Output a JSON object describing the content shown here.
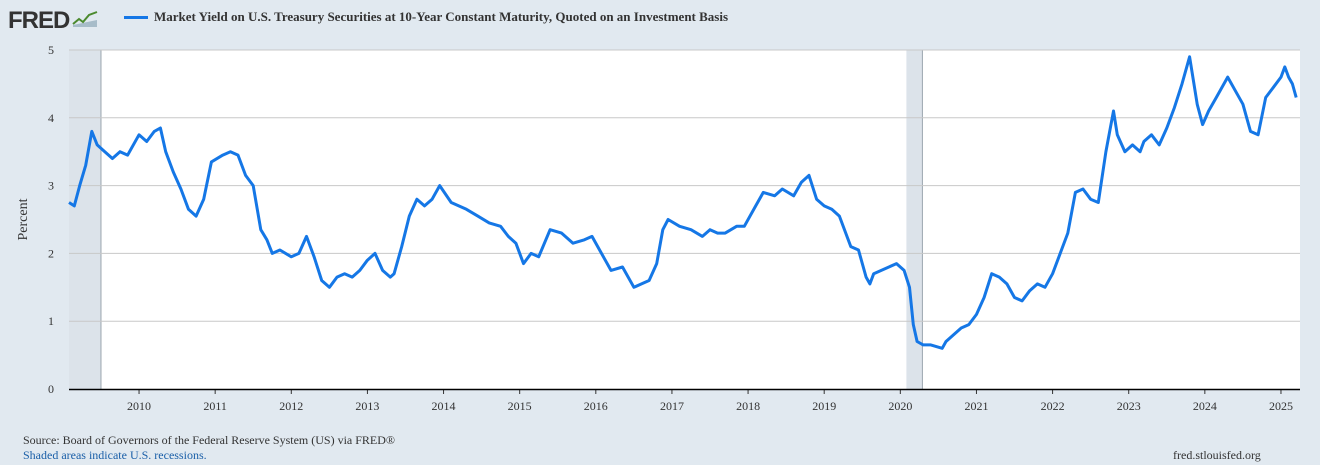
{
  "header": {
    "logo_text": "FRED",
    "logo_icon": "line-chart-icon",
    "series_title": "Market Yield on U.S. Treasury Securities at 10-Year Constant Maturity, Quoted on an Investment Basis"
  },
  "colors": {
    "series": "#1577e6",
    "background": "#e1e9f0",
    "plot": "#ffffff",
    "recession": "#dce3ea",
    "grid": "#c8c8c8"
  },
  "footer": {
    "source": "Source: Board of Governors of the Federal Reserve System (US) via FRED®",
    "shading_note": "Shaded areas indicate U.S. recessions.",
    "site": "fred.stlouisfed.org"
  },
  "chart_data": {
    "type": "line",
    "ylabel": "Percent",
    "xlabel": "",
    "ylim": [
      0,
      5
    ],
    "xlim": [
      2009.08,
      2025.25
    ],
    "y_ticks": [
      "0",
      "1",
      "2",
      "3",
      "4",
      "5"
    ],
    "x_ticks": [
      "2010",
      "2011",
      "2012",
      "2013",
      "2014",
      "2015",
      "2016",
      "2017",
      "2018",
      "2019",
      "2020",
      "2021",
      "2022",
      "2023",
      "2024",
      "2025"
    ],
    "grid": true,
    "legend": "top-left",
    "recessions": [
      [
        2009.08,
        2009.5
      ],
      [
        2020.08,
        2020.29
      ]
    ],
    "series": [
      {
        "name": "Market Yield on U.S. Treasury Securities at 10-Year Constant Maturity, Quoted on an Investment Basis",
        "x": [
          2009.08,
          2009.15,
          2009.22,
          2009.3,
          2009.38,
          2009.45,
          2009.55,
          2009.65,
          2009.75,
          2009.85,
          2010.0,
          2010.1,
          2010.2,
          2010.28,
          2010.35,
          2010.45,
          2010.55,
          2010.65,
          2010.75,
          2010.85,
          2010.95,
          2011.1,
          2011.2,
          2011.3,
          2011.4,
          2011.5,
          2011.6,
          2011.68,
          2011.75,
          2011.85,
          2012.0,
          2012.1,
          2012.2,
          2012.3,
          2012.4,
          2012.5,
          2012.6,
          2012.7,
          2012.8,
          2012.9,
          2013.0,
          2013.1,
          2013.2,
          2013.3,
          2013.35,
          2013.45,
          2013.55,
          2013.65,
          2013.75,
          2013.85,
          2013.95,
          2014.1,
          2014.2,
          2014.3,
          2014.45,
          2014.6,
          2014.75,
          2014.85,
          2014.95,
          2015.05,
          2015.15,
          2015.25,
          2015.4,
          2015.55,
          2015.7,
          2015.85,
          2015.95,
          2016.1,
          2016.2,
          2016.35,
          2016.5,
          2016.6,
          2016.7,
          2016.8,
          2016.88,
          2016.95,
          2017.1,
          2017.25,
          2017.4,
          2017.5,
          2017.6,
          2017.7,
          2017.85,
          2017.95,
          2018.1,
          2018.2,
          2018.35,
          2018.45,
          2018.6,
          2018.7,
          2018.8,
          2018.9,
          2019.0,
          2019.1,
          2019.2,
          2019.35,
          2019.45,
          2019.55,
          2019.6,
          2019.65,
          2019.75,
          2019.85,
          2019.95,
          2020.05,
          2020.12,
          2020.17,
          2020.22,
          2020.3,
          2020.4,
          2020.55,
          2020.6,
          2020.7,
          2020.8,
          2020.9,
          2021.0,
          2021.1,
          2021.2,
          2021.3,
          2021.4,
          2021.5,
          2021.6,
          2021.7,
          2021.8,
          2021.9,
          2022.0,
          2022.1,
          2022.2,
          2022.3,
          2022.4,
          2022.5,
          2022.6,
          2022.7,
          2022.8,
          2022.85,
          2022.95,
          2023.05,
          2023.15,
          2023.2,
          2023.3,
          2023.4,
          2023.5,
          2023.6,
          2023.7,
          2023.8,
          2023.85,
          2023.9,
          2023.97,
          2024.05,
          2024.15,
          2024.3,
          2024.4,
          2024.5,
          2024.6,
          2024.7,
          2024.8,
          2024.9,
          2025.0,
          2025.05,
          2025.1,
          2025.15,
          2025.2
        ],
        "values": [
          2.75,
          2.7,
          3.0,
          3.3,
          3.8,
          3.6,
          3.5,
          3.4,
          3.5,
          3.45,
          3.75,
          3.65,
          3.8,
          3.85,
          3.5,
          3.2,
          2.95,
          2.65,
          2.55,
          2.8,
          3.35,
          3.45,
          3.5,
          3.45,
          3.15,
          3.0,
          2.35,
          2.2,
          2.0,
          2.05,
          1.95,
          2.0,
          2.25,
          1.95,
          1.6,
          1.5,
          1.65,
          1.7,
          1.65,
          1.75,
          1.9,
          2.0,
          1.75,
          1.65,
          1.7,
          2.1,
          2.55,
          2.8,
          2.7,
          2.8,
          3.0,
          2.75,
          2.7,
          2.65,
          2.55,
          2.45,
          2.4,
          2.25,
          2.15,
          1.85,
          2.0,
          1.95,
          2.35,
          2.3,
          2.15,
          2.2,
          2.25,
          1.95,
          1.75,
          1.8,
          1.5,
          1.55,
          1.6,
          1.85,
          2.35,
          2.5,
          2.4,
          2.35,
          2.25,
          2.35,
          2.3,
          2.3,
          2.4,
          2.4,
          2.7,
          2.9,
          2.85,
          2.95,
          2.85,
          3.05,
          3.15,
          2.8,
          2.7,
          2.65,
          2.55,
          2.1,
          2.05,
          1.65,
          1.55,
          1.7,
          1.75,
          1.8,
          1.85,
          1.75,
          1.5,
          0.95,
          0.7,
          0.65,
          0.65,
          0.6,
          0.7,
          0.8,
          0.9,
          0.95,
          1.1,
          1.35,
          1.7,
          1.65,
          1.55,
          1.35,
          1.3,
          1.45,
          1.55,
          1.5,
          1.7,
          2.0,
          2.3,
          2.9,
          2.95,
          2.8,
          2.75,
          3.5,
          4.1,
          3.75,
          3.5,
          3.6,
          3.5,
          3.65,
          3.75,
          3.6,
          3.85,
          4.15,
          4.5,
          4.9,
          4.55,
          4.2,
          3.9,
          4.1,
          4.3,
          4.6,
          4.4,
          4.2,
          3.8,
          3.75,
          4.3,
          4.45,
          4.6,
          4.75,
          4.6,
          4.5,
          4.3
        ]
      }
    ]
  }
}
